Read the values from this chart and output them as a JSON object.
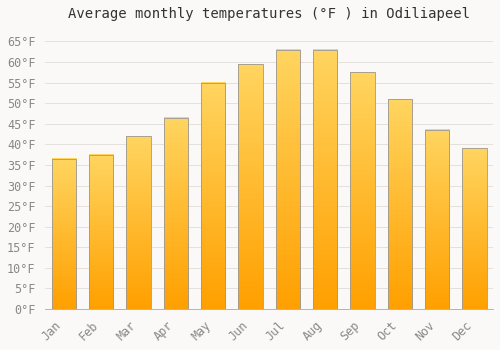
{
  "title": "Average monthly temperatures (°F ) in Odiliapeel",
  "months": [
    "Jan",
    "Feb",
    "Mar",
    "Apr",
    "May",
    "Jun",
    "Jul",
    "Aug",
    "Sep",
    "Oct",
    "Nov",
    "Dec"
  ],
  "values": [
    36.5,
    37.5,
    42.0,
    46.5,
    55.0,
    59.5,
    63.0,
    63.0,
    57.5,
    51.0,
    43.5,
    39.0
  ],
  "bar_color_top": "#FFB300",
  "bar_color_bottom": "#FFA000",
  "bar_edge_color": "#999999",
  "background_color": "#faf9f7",
  "grid_color": "#e0ddd8",
  "ylim": [
    0,
    68
  ],
  "yticks": [
    0,
    5,
    10,
    15,
    20,
    25,
    30,
    35,
    40,
    45,
    50,
    55,
    60,
    65
  ],
  "title_fontsize": 10,
  "tick_fontsize": 8.5,
  "tick_font_color": "#888888",
  "font_family": "monospace",
  "bar_width": 0.65
}
